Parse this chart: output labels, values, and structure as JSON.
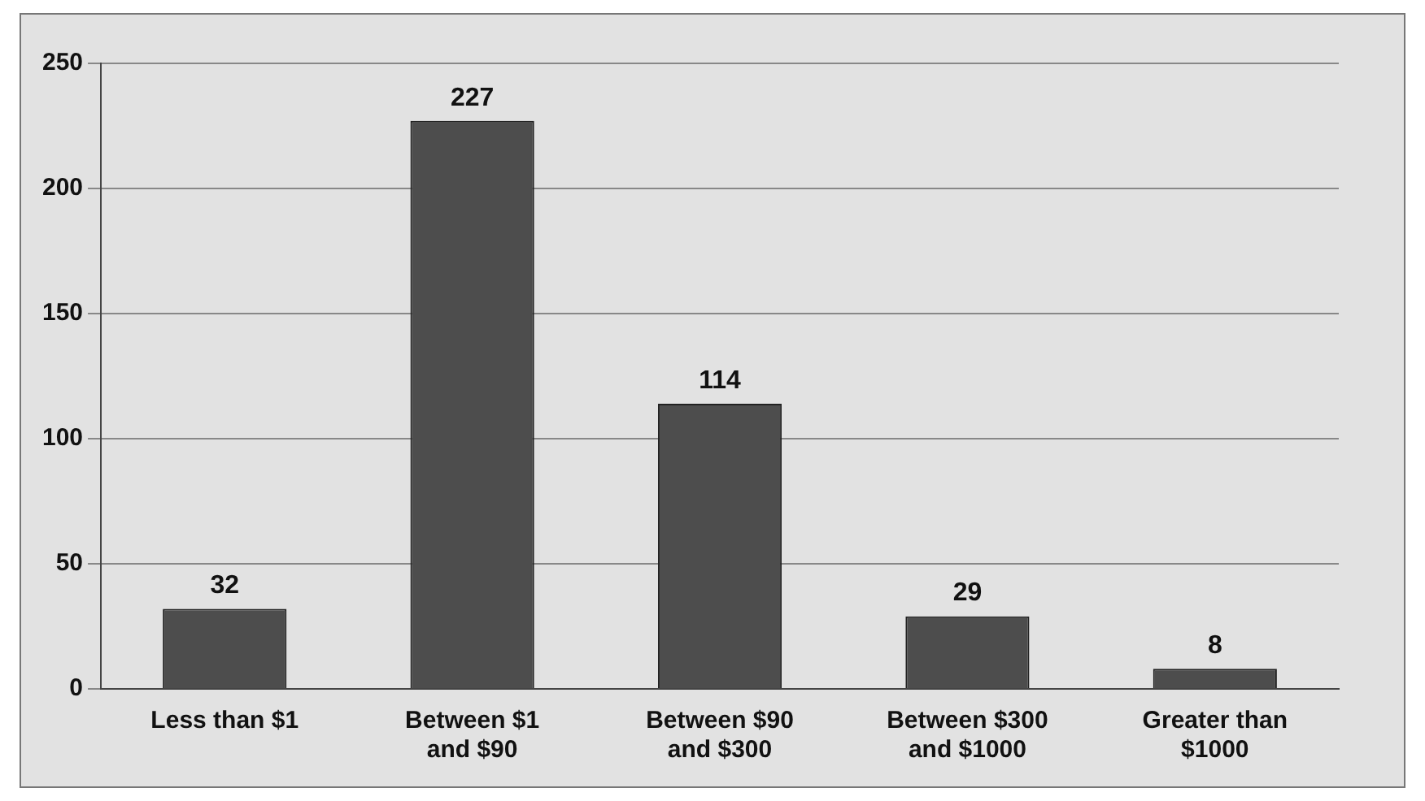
{
  "chart_data": {
    "type": "bar",
    "categories": [
      "Less than $1",
      "Between $1 and $90",
      "Between $90 and $300",
      "Between $300 and $1000",
      "Greater than $1000"
    ],
    "values": [
      32,
      227,
      114,
      29,
      8
    ],
    "color": "#4d4d4d",
    "ylim": [
      0,
      250
    ],
    "yticks": [
      0,
      50,
      100,
      150,
      200,
      250
    ],
    "grid": "y",
    "data_labels": true
  }
}
